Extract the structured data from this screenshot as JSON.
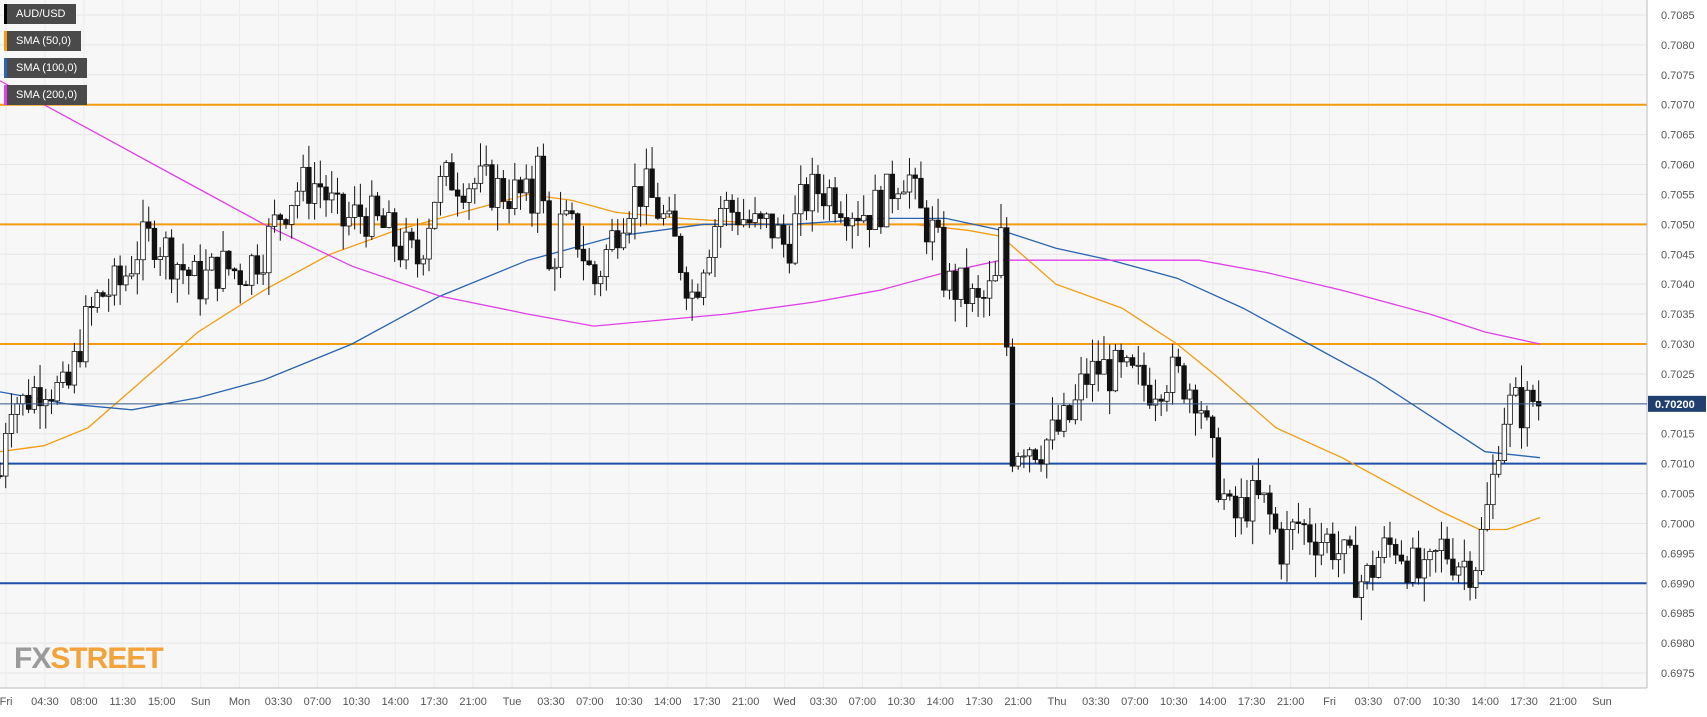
{
  "legend": [
    {
      "label": "AUD/USD",
      "color": "#000000"
    },
    {
      "label": "SMA (50,0)",
      "color": "#f39c12"
    },
    {
      "label": "SMA (100,0)",
      "color": "#2b64b0"
    },
    {
      "label": "SMA (200,0)",
      "color": "#e040e8"
    }
  ],
  "logo": {
    "fx": "FX",
    "street": "STREET"
  },
  "chart_data": {
    "type": "candlestick",
    "symbol": "AUD/USD",
    "ylim": [
      0.69725,
      0.70875
    ],
    "y_ticks": [
      "0.7085",
      "0.7080",
      "0.7075",
      "0.7070",
      "0.7065",
      "0.7060",
      "0.7055",
      "0.7050",
      "0.7045",
      "0.7040",
      "0.7035",
      "0.7030",
      "0.7025",
      "0.7020",
      "0.7015",
      "0.7010",
      "0.7005",
      "0.7000",
      "0.6995",
      "0.6990",
      "0.6985",
      "0.6980",
      "0.6975"
    ],
    "x_ticks": [
      "Fri",
      "04:30",
      "08:00",
      "11:30",
      "15:00",
      "Sun",
      "Mon",
      "03:30",
      "07:00",
      "10:30",
      "14:00",
      "17:30",
      "21:00",
      "Tue",
      "03:30",
      "07:00",
      "10:30",
      "14:00",
      "17:30",
      "21:00",
      "Wed",
      "03:30",
      "07:00",
      "10:30",
      "14:00",
      "17:30",
      "21:00",
      "Thu",
      "03:30",
      "07:00",
      "10:30",
      "14:00",
      "17:30",
      "21:00",
      "Fri",
      "03:30",
      "07:00",
      "10:30",
      "14:00",
      "17:30",
      "21:00",
      "Sun"
    ],
    "current_price": "0.70200",
    "current_value": 0.702,
    "horizontal_levels": [
      {
        "value": 0.707,
        "color": "#f39c12"
      },
      {
        "value": 0.705,
        "color": "#f39c12"
      },
      {
        "value": 0.703,
        "color": "#f39c12"
      },
      {
        "value": 0.701,
        "color": "#1f4fa8"
      },
      {
        "value": 0.699,
        "color": "#1f4fa8"
      }
    ],
    "price_path": [
      [
        0,
        0.7008
      ],
      [
        8,
        0.7022
      ],
      [
        20,
        0.702
      ],
      [
        40,
        0.7024
      ],
      [
        60,
        0.7021
      ],
      [
        75,
        0.7032
      ],
      [
        90,
        0.7038
      ],
      [
        110,
        0.704
      ],
      [
        125,
        0.7046
      ],
      [
        140,
        0.7048
      ],
      [
        160,
        0.7044
      ],
      [
        180,
        0.704
      ],
      [
        200,
        0.7043
      ],
      [
        220,
        0.7042
      ],
      [
        240,
        0.7046
      ],
      [
        255,
        0.7052
      ],
      [
        270,
        0.7056
      ],
      [
        290,
        0.7057
      ],
      [
        310,
        0.705
      ],
      [
        330,
        0.7052
      ],
      [
        350,
        0.7049
      ],
      [
        365,
        0.7046
      ],
      [
        380,
        0.7044
      ],
      [
        395,
        0.7055
      ],
      [
        410,
        0.7058
      ],
      [
        430,
        0.7057
      ],
      [
        450,
        0.7056
      ],
      [
        470,
        0.7055
      ],
      [
        485,
        0.7053
      ],
      [
        490,
        0.7068
      ],
      [
        497,
        0.704
      ],
      [
        510,
        0.705
      ],
      [
        525,
        0.7048
      ],
      [
        540,
        0.704
      ],
      [
        555,
        0.7047
      ],
      [
        570,
        0.7054
      ],
      [
        585,
        0.7056
      ],
      [
        600,
        0.7052
      ],
      [
        615,
        0.7046
      ],
      [
        630,
        0.7038
      ],
      [
        640,
        0.7045
      ],
      [
        655,
        0.7053
      ],
      [
        670,
        0.7052
      ],
      [
        690,
        0.7049
      ],
      [
        700,
        0.705
      ],
      [
        715,
        0.7046
      ],
      [
        730,
        0.7054
      ],
      [
        745,
        0.7056
      ],
      [
        760,
        0.7055
      ],
      [
        775,
        0.7053
      ],
      [
        790,
        0.7052
      ],
      [
        805,
        0.7054
      ],
      [
        815,
        0.7058
      ],
      [
        825,
        0.7059
      ],
      [
        835,
        0.7052
      ],
      [
        850,
        0.7048
      ],
      [
        860,
        0.704
      ],
      [
        875,
        0.7039
      ],
      [
        890,
        0.7036
      ],
      [
        905,
        0.704
      ],
      [
        912,
        0.705
      ],
      [
        918,
        0.7012
      ],
      [
        930,
        0.7014
      ],
      [
        945,
        0.7013
      ],
      [
        960,
        0.7015
      ],
      [
        975,
        0.7018
      ],
      [
        985,
        0.7024
      ],
      [
        1000,
        0.7026
      ],
      [
        1015,
        0.7025
      ],
      [
        1030,
        0.7024
      ],
      [
        1045,
        0.7023
      ],
      [
        1060,
        0.7025
      ],
      [
        1075,
        0.7024
      ],
      [
        1090,
        0.7022
      ],
      [
        1100,
        0.7012
      ],
      [
        1110,
        0.7006
      ],
      [
        1120,
        0.7
      ],
      [
        1135,
        0.7004
      ],
      [
        1150,
        0.7003
      ],
      [
        1165,
        0.6996
      ],
      [
        1180,
        0.7
      ],
      [
        1195,
        0.6998
      ],
      [
        1210,
        0.6997
      ],
      [
        1225,
        0.6993
      ],
      [
        1240,
        0.699
      ],
      [
        1255,
        0.6995
      ],
      [
        1270,
        0.6997
      ],
      [
        1285,
        0.6992
      ],
      [
        1295,
        0.699
      ],
      [
        1310,
        0.6996
      ],
      [
        1325,
        0.6994
      ],
      [
        1340,
        0.6993
      ],
      [
        1350,
        0.7
      ],
      [
        1358,
        0.7008
      ],
      [
        1365,
        0.7018
      ],
      [
        1375,
        0.702
      ],
      [
        1385,
        0.7019
      ],
      [
        1395,
        0.7021
      ],
      [
        1400,
        0.702
      ]
    ],
    "sma50_path": [
      [
        0,
        0.7012
      ],
      [
        40,
        0.7013
      ],
      [
        80,
        0.7016
      ],
      [
        130,
        0.7024
      ],
      [
        180,
        0.7032
      ],
      [
        240,
        0.7039
      ],
      [
        300,
        0.7045
      ],
      [
        360,
        0.7049
      ],
      [
        420,
        0.7052
      ],
      [
        480,
        0.7055
      ],
      [
        520,
        0.7054
      ],
      [
        560,
        0.7052
      ],
      [
        620,
        0.7051
      ],
      [
        700,
        0.705
      ],
      [
        760,
        0.705
      ],
      [
        830,
        0.705
      ],
      [
        880,
        0.7049
      ],
      [
        910,
        0.7048
      ],
      [
        960,
        0.704
      ],
      [
        1020,
        0.7036
      ],
      [
        1070,
        0.703
      ],
      [
        1110,
        0.7024
      ],
      [
        1160,
        0.7016
      ],
      [
        1220,
        0.7011
      ],
      [
        1270,
        0.7006
      ],
      [
        1310,
        0.7002
      ],
      [
        1345,
        0.6999
      ],
      [
        1370,
        0.6999
      ],
      [
        1400,
        0.7001
      ]
    ],
    "sma100_path": [
      [
        0,
        0.7022
      ],
      [
        60,
        0.702
      ],
      [
        120,
        0.7019
      ],
      [
        180,
        0.7021
      ],
      [
        240,
        0.7024
      ],
      [
        320,
        0.703
      ],
      [
        400,
        0.7038
      ],
      [
        480,
        0.7044
      ],
      [
        560,
        0.7048
      ],
      [
        640,
        0.705
      ],
      [
        720,
        0.705
      ],
      [
        800,
        0.7051
      ],
      [
        860,
        0.7051
      ],
      [
        910,
        0.7049
      ],
      [
        960,
        0.7046
      ],
      [
        1010,
        0.7044
      ],
      [
        1070,
        0.7041
      ],
      [
        1130,
        0.7036
      ],
      [
        1190,
        0.703
      ],
      [
        1250,
        0.7024
      ],
      [
        1300,
        0.7018
      ],
      [
        1350,
        0.7012
      ],
      [
        1400,
        0.7011
      ]
    ],
    "sma200_path": [
      [
        0,
        0.7074
      ],
      [
        80,
        0.7066
      ],
      [
        160,
        0.7058
      ],
      [
        240,
        0.705
      ],
      [
        320,
        0.7043
      ],
      [
        400,
        0.7038
      ],
      [
        480,
        0.7035
      ],
      [
        540,
        0.7033
      ],
      [
        600,
        0.7034
      ],
      [
        660,
        0.7035
      ],
      [
        740,
        0.7037
      ],
      [
        800,
        0.7039
      ],
      [
        860,
        0.7042
      ],
      [
        910,
        0.7044
      ],
      [
        970,
        0.7044
      ],
      [
        1020,
        0.7044
      ],
      [
        1090,
        0.7044
      ],
      [
        1150,
        0.7042
      ],
      [
        1220,
        0.7039
      ],
      [
        1300,
        0.7035
      ],
      [
        1350,
        0.7032
      ],
      [
        1400,
        0.703
      ]
    ]
  }
}
